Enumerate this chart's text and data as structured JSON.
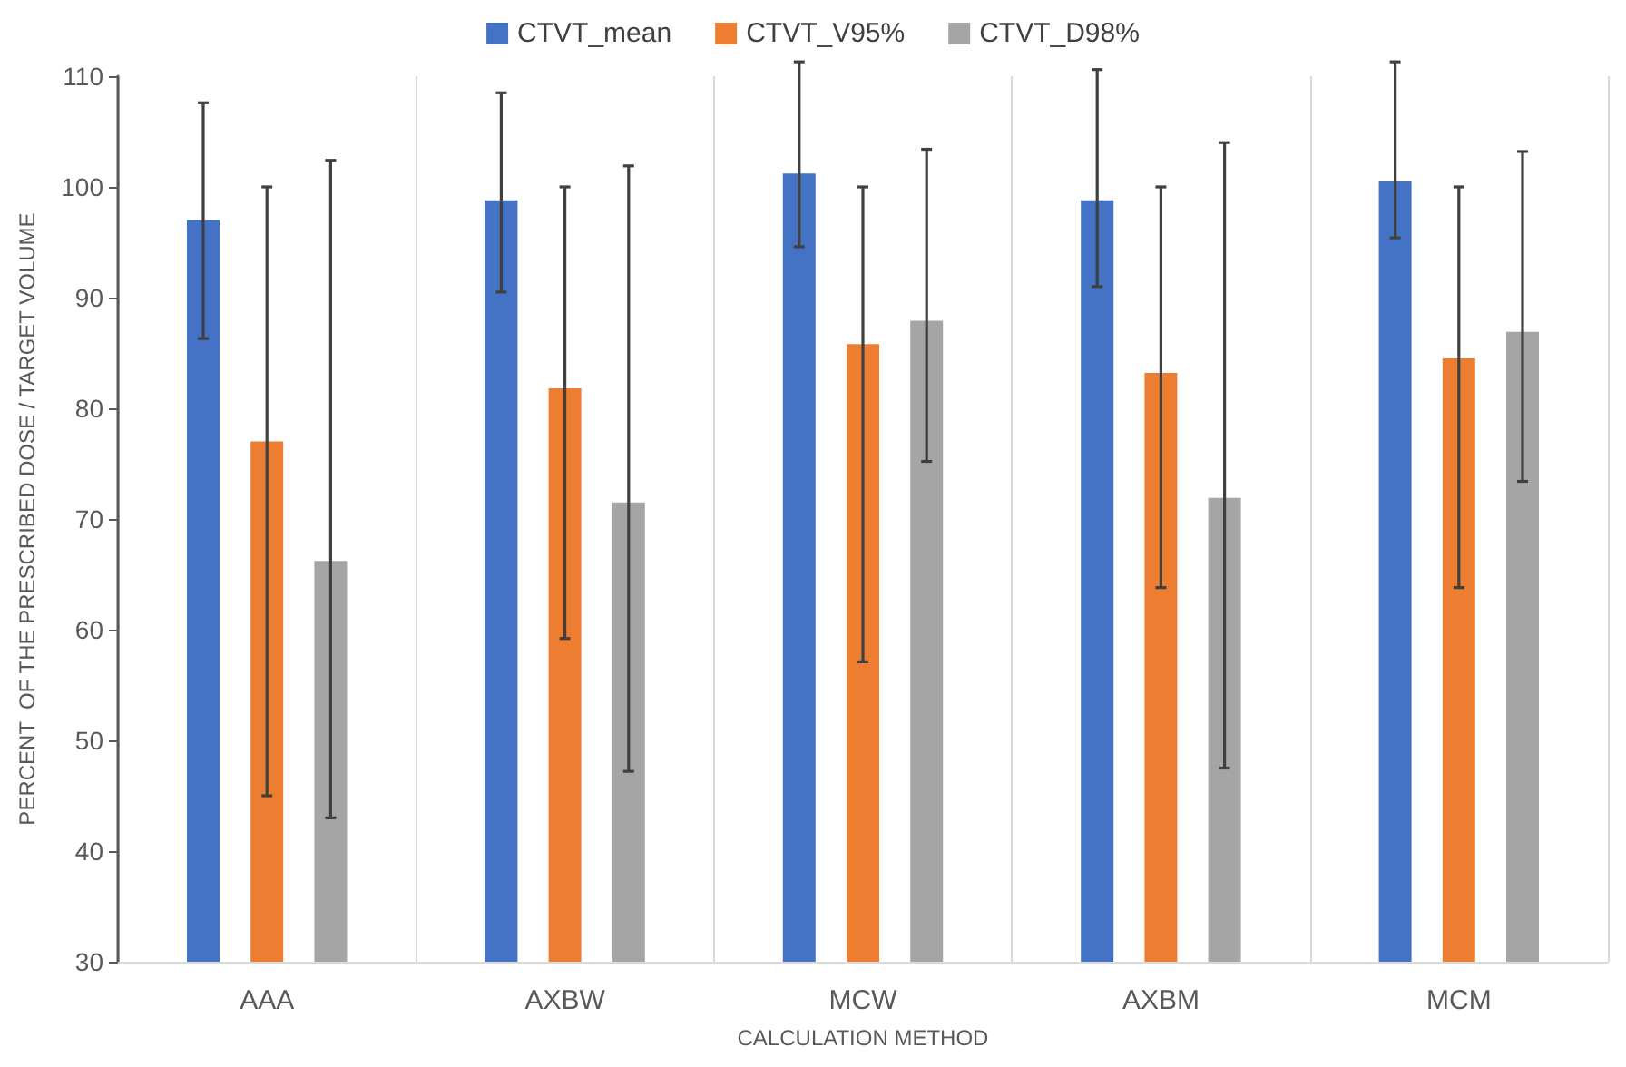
{
  "chart_data": {
    "type": "bar",
    "xlabel": "CALCULATION METHOD",
    "ylabel": "PERCENT  OF THE PRESCRIBED DOSE / TARGET VOLUME",
    "categories": [
      "AAA",
      "AXBW",
      "MCW",
      "AXBM",
      "MCM"
    ],
    "series": [
      {
        "name": "CTVT_mean",
        "color": "#4472c4",
        "values": [
          97,
          98.8,
          101.2,
          98.8,
          100.5
        ],
        "errors": [
          [
            86.3,
            107.6
          ],
          [
            90.5,
            108.5
          ],
          [
            94.6,
            111.3
          ],
          [
            91,
            110.6
          ],
          [
            95.4,
            111.3
          ]
        ]
      },
      {
        "name": "CTVT_V95%",
        "color": "#ed7d31",
        "values": [
          77,
          81.8,
          85.8,
          83.2,
          84.5
        ],
        "errors": [
          [
            45,
            100
          ],
          [
            59.2,
            100
          ],
          [
            57.1,
            100
          ],
          [
            63.8,
            100
          ],
          [
            63.8,
            100
          ]
        ]
      },
      {
        "name": "CTVT_D98%",
        "color": "#a5a5a5",
        "values": [
          66.2,
          71.5,
          87.9,
          71.9,
          86.9
        ],
        "errors": [
          [
            43,
            102.4
          ],
          [
            47.2,
            101.9
          ],
          [
            75.2,
            103.4
          ],
          [
            47.5,
            104
          ],
          [
            73.4,
            103.2
          ]
        ]
      }
    ],
    "ylim": [
      30,
      110
    ],
    "yticks": [
      30,
      40,
      50,
      60,
      70,
      80,
      90,
      100,
      110
    ],
    "grid": "x",
    "legend": "top"
  }
}
